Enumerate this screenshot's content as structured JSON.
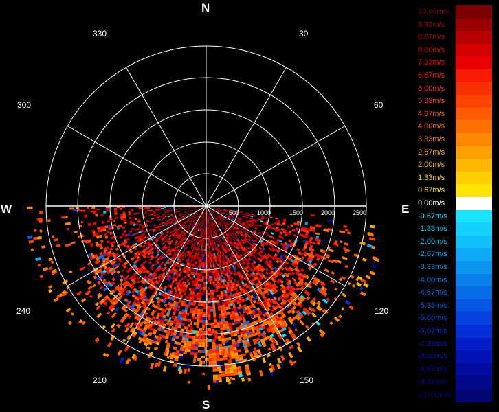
{
  "compass": {
    "north": "N",
    "south": "S",
    "east": "E",
    "west": "W"
  },
  "bearings": [
    "330",
    "30",
    "300",
    "60",
    "240",
    "120",
    "210",
    "150"
  ],
  "range_labels": [
    "500",
    "1000",
    "1500",
    "2000",
    "2500"
  ],
  "colors": {
    "background": "#000000",
    "rings": "#ffffff",
    "zero": "#ffffff"
  },
  "legend": [
    {
      "label": "10.00m/s",
      "color": "#7a0000"
    },
    {
      "label": "9.33m/s",
      "color": "#9a0000"
    },
    {
      "label": "8.67m/s",
      "color": "#b80000"
    },
    {
      "label": "8.00m/s",
      "color": "#d40000"
    },
    {
      "label": "7.33m/s",
      "color": "#ea0000"
    },
    {
      "label": "6.67m/s",
      "color": "#f51a00"
    },
    {
      "label": "6.00m/s",
      "color": "#fa2f00"
    },
    {
      "label": "5.33m/s",
      "color": "#fd4300"
    },
    {
      "label": "4.67m/s",
      "color": "#fe5a00"
    },
    {
      "label": "4.00m/s",
      "color": "#fe7000"
    },
    {
      "label": "3.33m/s",
      "color": "#fe8800"
    },
    {
      "label": "2.67m/s",
      "color": "#fea000"
    },
    {
      "label": "2.00m/s",
      "color": "#feb800"
    },
    {
      "label": "1.33m/s",
      "color": "#fece00"
    },
    {
      "label": "0.67m/s",
      "color": "#fee400"
    },
    {
      "label": "0.00m/s",
      "color": "#ffffff"
    },
    {
      "label": "-0.67m/s",
      "color": "#18e4ff"
    },
    {
      "label": "-1.33m/s",
      "color": "#14d2ff"
    },
    {
      "label": "-2.00m/s",
      "color": "#10c0fa"
    },
    {
      "label": "-2.67m/s",
      "color": "#0eaaf6"
    },
    {
      "label": "-3.33m/s",
      "color": "#0c96f2"
    },
    {
      "label": "-4.00m/s",
      "color": "#0a80ec"
    },
    {
      "label": "-4.67m/s",
      "color": "#086ce8"
    },
    {
      "label": "-5.33m/s",
      "color": "#0656e4"
    },
    {
      "label": "-6.00m/s",
      "color": "#0442e0"
    },
    {
      "label": "-6.67m/s",
      "color": "#032ed8"
    },
    {
      "label": "-7.33m/s",
      "color": "#021cc8"
    },
    {
      "label": "-8.00m/s",
      "color": "#0212b4"
    },
    {
      "label": "-8.67m/s",
      "color": "#020ca0"
    },
    {
      "label": "-9.33m/s",
      "color": "#02088a"
    },
    {
      "label": "-10.00m/s",
      "color": "#020674"
    }
  ]
}
